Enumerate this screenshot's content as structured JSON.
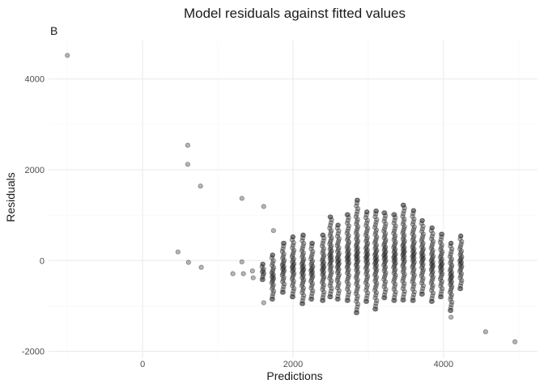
{
  "chart_data": {
    "type": "scatter",
    "title": "Model residuals against fitted values",
    "tag": "B",
    "xlabel": "Predictions",
    "ylabel": "Residuals",
    "xlim": [
      -1250,
      5250
    ],
    "ylim": [
      -2150,
      4850
    ],
    "x_ticks": [
      0,
      2000,
      4000
    ],
    "y_ticks": [
      -2000,
      0,
      2000,
      4000
    ],
    "x_tick_labels": [
      "0",
      "2000",
      "4000"
    ],
    "y_tick_labels": [
      "-2000",
      "0",
      "2000",
      "4000"
    ],
    "grid": true,
    "legend": "none",
    "point_color": "#1a1a1a",
    "outlier_points": [
      {
        "x": -1000,
        "y": 4520
      },
      {
        "x": 600,
        "y": 2540
      },
      {
        "x": 600,
        "y": 2120
      },
      {
        "x": 770,
        "y": 1640
      },
      {
        "x": 1320,
        "y": 1370
      },
      {
        "x": 1610,
        "y": 1190
      },
      {
        "x": 470,
        "y": 190
      },
      {
        "x": 610,
        "y": -40
      },
      {
        "x": 780,
        "y": -150
      },
      {
        "x": 1200,
        "y": -290
      },
      {
        "x": 1320,
        "y": -30
      },
      {
        "x": 1340,
        "y": -290
      },
      {
        "x": 1460,
        "y": -230
      },
      {
        "x": 1470,
        "y": -380
      },
      {
        "x": 1610,
        "y": -930
      },
      {
        "x": 1740,
        "y": 660
      },
      {
        "x": 4100,
        "y": -1250
      },
      {
        "x": 4560,
        "y": -1570
      },
      {
        "x": 4950,
        "y": -1790
      }
    ],
    "point_columns": [
      {
        "x": 1600,
        "ymin": -420,
        "ymax": -80
      },
      {
        "x": 1730,
        "ymin": -850,
        "ymax": 120
      },
      {
        "x": 1870,
        "ymin": -700,
        "ymax": 380
      },
      {
        "x": 2000,
        "ymin": -800,
        "ymax": 520
      },
      {
        "x": 2130,
        "ymin": -950,
        "ymax": 560
      },
      {
        "x": 2250,
        "ymin": -850,
        "ymax": 380
      },
      {
        "x": 2400,
        "ymin": -880,
        "ymax": 560
      },
      {
        "x": 2500,
        "ymin": -800,
        "ymax": 960
      },
      {
        "x": 2600,
        "ymin": -850,
        "ymax": 780
      },
      {
        "x": 2730,
        "ymin": -880,
        "ymax": 1010
      },
      {
        "x": 2850,
        "ymin": -1150,
        "ymax": 1330
      },
      {
        "x": 2980,
        "ymin": -900,
        "ymax": 1070
      },
      {
        "x": 3100,
        "ymin": -1070,
        "ymax": 1090
      },
      {
        "x": 3220,
        "ymin": -820,
        "ymax": 1050
      },
      {
        "x": 3350,
        "ymin": -880,
        "ymax": 1010
      },
      {
        "x": 3470,
        "ymin": -870,
        "ymax": 1220
      },
      {
        "x": 3600,
        "ymin": -880,
        "ymax": 1100
      },
      {
        "x": 3720,
        "ymin": -740,
        "ymax": 880
      },
      {
        "x": 3850,
        "ymin": -900,
        "ymax": 720
      },
      {
        "x": 3970,
        "ymin": -800,
        "ymax": 580
      },
      {
        "x": 4100,
        "ymin": -1100,
        "ymax": 380
      },
      {
        "x": 4230,
        "ymin": -620,
        "ymax": 540
      }
    ]
  }
}
